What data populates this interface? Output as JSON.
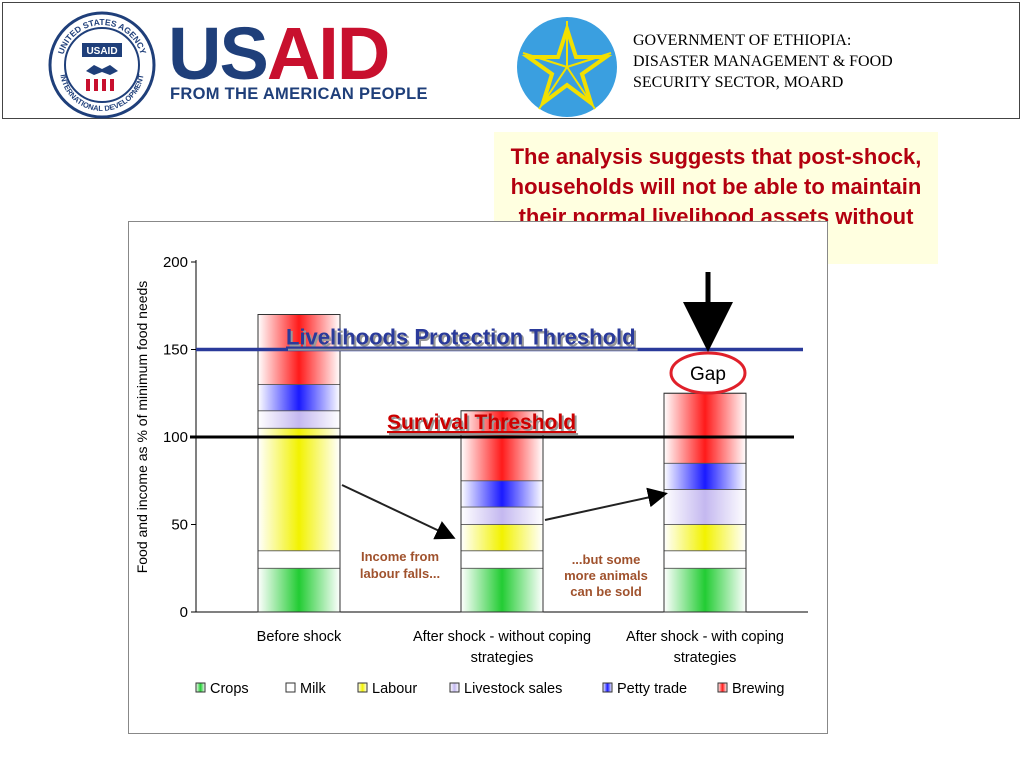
{
  "header": {
    "seal_text_top": "UNITED STATES AGENCY",
    "seal_text_bottom": "INTERNATIONAL DEVELOPMENT",
    "seal_label": "USAID",
    "logo_us": "US",
    "logo_aid": "AID",
    "tagline": "FROM THE AMERICAN PEOPLE",
    "gov_lines": [
      "GOVERNMENT OF ETHIOPIA:",
      "DISASTER MANAGEMENT & FOOD",
      "SECURITY SECTOR, MOARD"
    ]
  },
  "callout": {
    "text": "The analysis suggests that post-shock, households will not be able to maintain their normal livelihood assets without assistance."
  },
  "colors": {
    "crops": "#22cc33",
    "milk": "#ffffff",
    "labour": "#f2f200",
    "livestock": "#c4b8f0",
    "petty": "#1a1aff",
    "brewing": "#ff1a1a",
    "lpt_line": "#2a3a9a",
    "survival_line": "#000000",
    "survival_text": "#cc0000",
    "note_text": "#a0522d"
  },
  "chart_data": {
    "type": "bar",
    "stacked": true,
    "categories": [
      [
        "Before shock"
      ],
      [
        "After shock - without coping",
        "strategies"
      ],
      [
        "After shock - with coping",
        "strategies"
      ]
    ],
    "ylabel": "Food and income as % of minimum food needs",
    "ylim": [
      0,
      200
    ],
    "yticks": [
      0,
      50,
      100,
      150,
      200
    ],
    "series": [
      {
        "name": "Crops",
        "key": "crops",
        "values": [
          25,
          25,
          25
        ]
      },
      {
        "name": "Milk",
        "key": "milk",
        "values": [
          10,
          10,
          10
        ]
      },
      {
        "name": "Labour",
        "key": "labour",
        "values": [
          70,
          15,
          15
        ]
      },
      {
        "name": "Livestock sales",
        "key": "livestock",
        "values": [
          10,
          10,
          20
        ]
      },
      {
        "name": "Petty trade",
        "key": "petty",
        "values": [
          15,
          15,
          15
        ]
      },
      {
        "name": "Brewing",
        "key": "brewing",
        "values": [
          40,
          40,
          40
        ]
      }
    ],
    "legend_extras": [
      {
        "bar": 0,
        "base": 105,
        "height": 1,
        "key": "milk"
      },
      {
        "bar": 0,
        "base": 115,
        "height": 0,
        "key": "milk"
      }
    ],
    "thresholds": [
      {
        "name": "Livelihoods Protection Threshold",
        "value": 150
      },
      {
        "name": "Survival Threshold",
        "value": 100
      }
    ],
    "annotations": {
      "gap": "Gap",
      "note1": [
        "Income from",
        "labour falls..."
      ],
      "note2": [
        "...but some",
        "more animals",
        "can be sold"
      ]
    },
    "legend_position": "bottom"
  }
}
